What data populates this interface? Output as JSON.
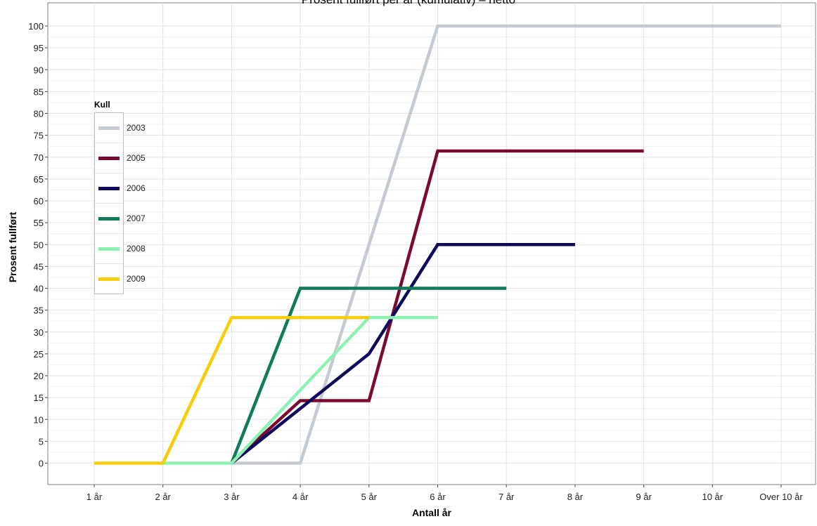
{
  "chart_data": {
    "type": "line",
    "title": "Prosent fullført per år (kumulativ) – netto",
    "xlabel": "Antall år",
    "ylabel": "Prosent fullført",
    "categories": [
      "1 år",
      "2 år",
      "3 år",
      "4 år",
      "5 år",
      "6 år",
      "7 år",
      "8 år",
      "9 år",
      "10 år",
      "Over 10 år"
    ],
    "yticks": [
      0,
      5,
      10,
      15,
      20,
      25,
      30,
      35,
      40,
      45,
      50,
      55,
      60,
      65,
      70,
      75,
      80,
      85,
      90,
      95,
      100
    ],
    "ylim": [
      -5,
      105
    ],
    "grid": true,
    "legend_title": "Kull",
    "legend_position": "left",
    "series": [
      {
        "name": "2003",
        "color": "#c3cad2",
        "values": [
          null,
          null,
          0,
          0,
          50,
          100,
          100,
          100,
          100,
          100,
          100
        ]
      },
      {
        "name": "2005",
        "color": "#7a0a32",
        "values": [
          null,
          null,
          0,
          14.3,
          14.3,
          71.4,
          71.4,
          71.4,
          71.4,
          null,
          null
        ]
      },
      {
        "name": "2006",
        "color": "#0d0a5c",
        "values": [
          null,
          null,
          0,
          12.5,
          25,
          50,
          50,
          50,
          null,
          null,
          null
        ]
      },
      {
        "name": "2007",
        "color": "#0f7a5c",
        "values": [
          null,
          null,
          0,
          40,
          40,
          40,
          40,
          null,
          null,
          null,
          null
        ]
      },
      {
        "name": "2008",
        "color": "#8cf2b4",
        "values": [
          null,
          0,
          0,
          16.7,
          33.3,
          33.3,
          null,
          null,
          null,
          null,
          null
        ]
      },
      {
        "name": "2009",
        "color": "#f8cc0a",
        "values": [
          0,
          0,
          33.3,
          33.3,
          33.3,
          null,
          null,
          null,
          null,
          null,
          null
        ]
      }
    ]
  }
}
